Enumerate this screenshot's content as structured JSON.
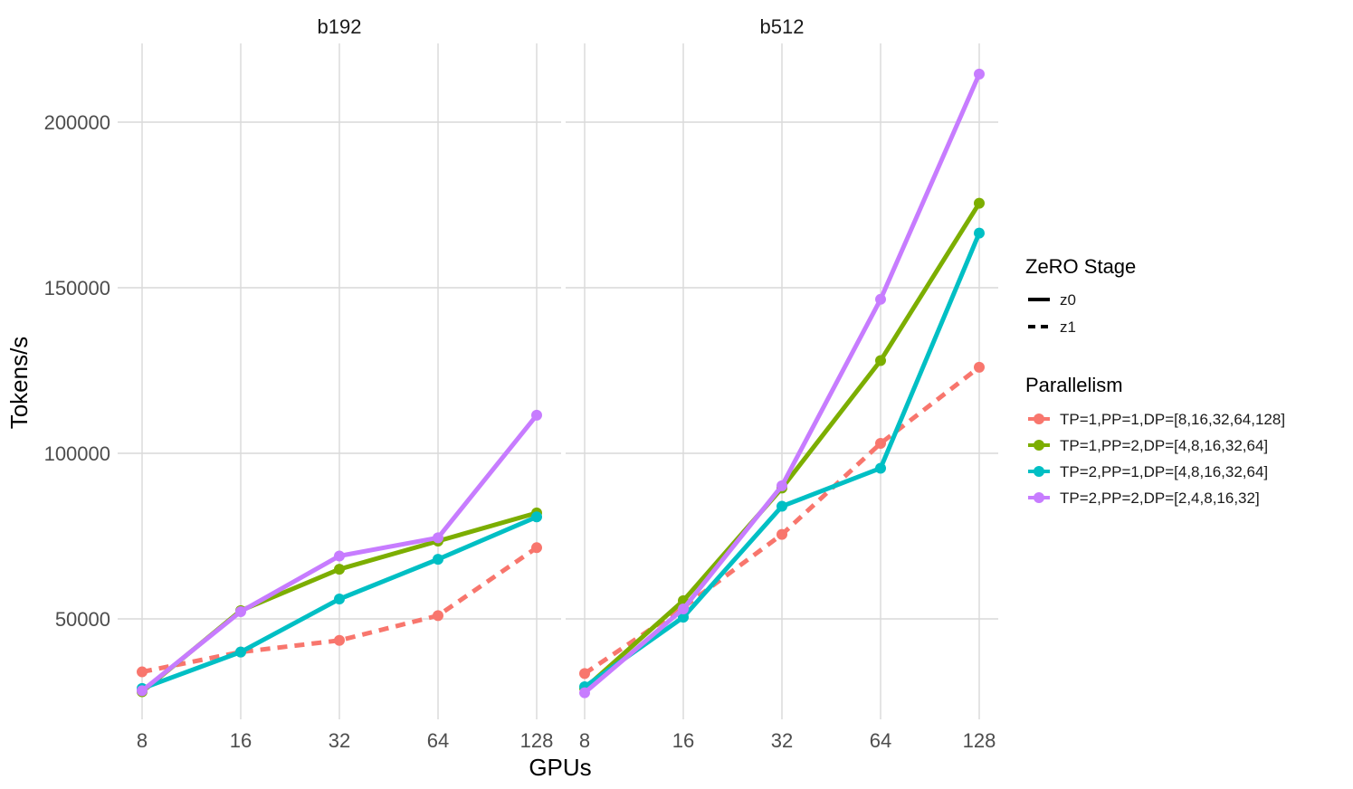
{
  "chart_data": {
    "type": "line",
    "ylabel": "Tokens/s",
    "xlabel": "GPUs",
    "x_ticks": [
      "8",
      "16",
      "32",
      "64",
      "128"
    ],
    "y_ticks": [
      50000,
      100000,
      150000,
      200000
    ],
    "y_tick_labels": [
      "50000",
      "100000",
      "150000",
      "200000"
    ],
    "ylim": [
      20000,
      224000
    ],
    "grid": true,
    "legend_position": "right",
    "legend": {
      "linetype_title": "ZeRO Stage",
      "linetypes": [
        {
          "label": "z0",
          "dash": "solid"
        },
        {
          "label": "z1",
          "dash": "dashed"
        }
      ],
      "color_title": "Parallelism",
      "colors": [
        {
          "label": "TP=1,PP=1,DP=[8,16,32,64,128]",
          "color": "#F8766D"
        },
        {
          "label": "TP=1,PP=2,DP=[4,8,16,32,64]",
          "color": "#7CAE00"
        },
        {
          "label": "TP=2,PP=1,DP=[4,8,16,32,64]",
          "color": "#00BFC4"
        },
        {
          "label": "TP=2,PP=2,DP=[2,4,8,16,32]",
          "color": "#C77CFF"
        }
      ]
    },
    "panels": [
      {
        "title": "b192",
        "series": [
          {
            "parallelism": "TP=1,PP=1,DP=[8,16,32,64,128]",
            "zero": "z1",
            "color": "#F8766D",
            "values": [
              34000,
              40000,
              43500,
              51000,
              71500
            ]
          },
          {
            "parallelism": "TP=1,PP=2,DP=[4,8,16,32,64]",
            "zero": "z0",
            "color": "#7CAE00",
            "values": [
              28000,
              52500,
              65000,
              73500,
              82000
            ]
          },
          {
            "parallelism": "TP=2,PP=1,DP=[4,8,16,32,64]",
            "zero": "z0",
            "color": "#00BFC4",
            "values": [
              29000,
              40000,
              56000,
              68000,
              80800
            ]
          },
          {
            "parallelism": "TP=2,PP=2,DP=[2,4,8,16,32]",
            "zero": "z0",
            "color": "#C77CFF",
            "values": [
              28300,
              52200,
              69000,
              74500,
              111500
            ]
          }
        ]
      },
      {
        "title": "b512",
        "series": [
          {
            "parallelism": "TP=1,PP=1,DP=[8,16,32,64,128]",
            "zero": "z1",
            "color": "#F8766D",
            "values": [
              33500,
              53500,
              75500,
              103000,
              126000
            ]
          },
          {
            "parallelism": "TP=1,PP=2,DP=[4,8,16,32,64]",
            "zero": "z0",
            "color": "#7CAE00",
            "values": [
              29000,
              55500,
              89500,
              128000,
              175500
            ]
          },
          {
            "parallelism": "TP=2,PP=1,DP=[4,8,16,32,64]",
            "zero": "z0",
            "color": "#00BFC4",
            "values": [
              29500,
              50500,
              84000,
              95500,
              166500
            ]
          },
          {
            "parallelism": "TP=2,PP=2,DP=[2,4,8,16,32]",
            "zero": "z0",
            "color": "#C77CFF",
            "values": [
              27700,
              53000,
              90200,
              146500,
              214500
            ]
          }
        ]
      }
    ]
  }
}
